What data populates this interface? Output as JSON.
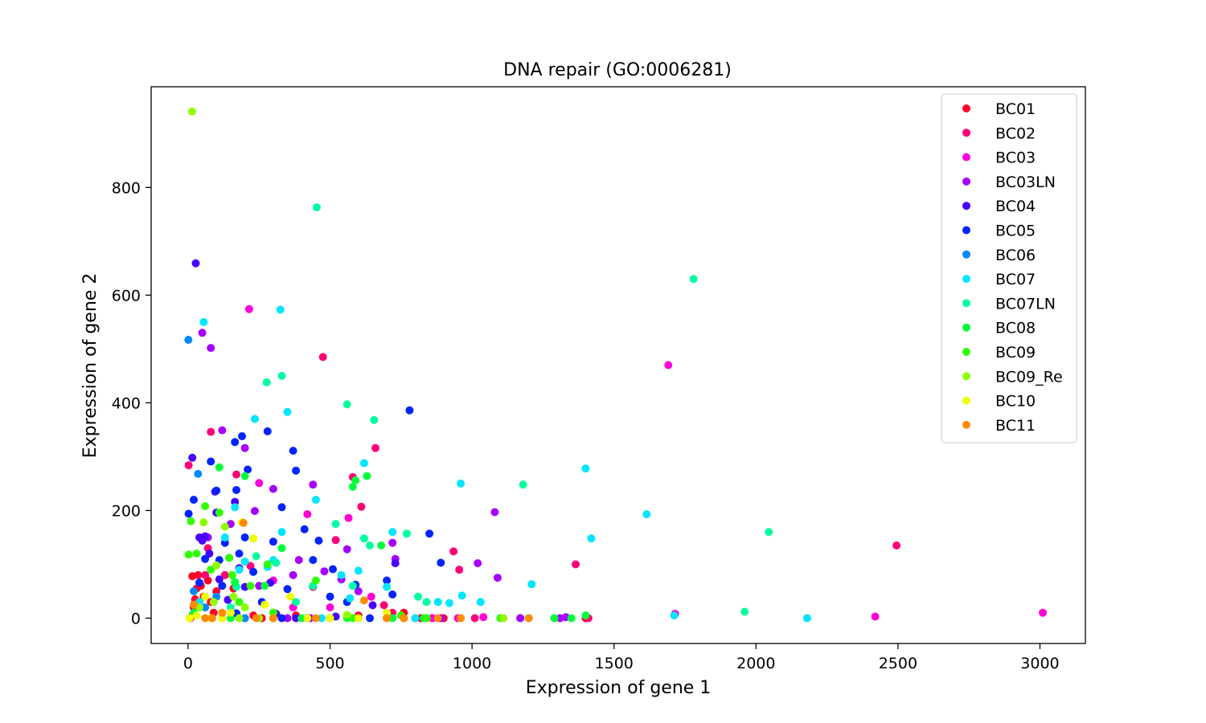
{
  "chart_data": {
    "type": "scatter",
    "title": "DNA repair (GO:0006281)",
    "xlabel": "Expression of gene 1",
    "ylabel": "Expression of gene 2",
    "xlim": [
      -130,
      3160
    ],
    "ylim": [
      -47,
      987
    ],
    "xticks": [
      0,
      500,
      1000,
      1500,
      2000,
      2500,
      3000
    ],
    "yticks": [
      0,
      200,
      400,
      600,
      800
    ],
    "grid": false,
    "legend_position": "upper right",
    "series": [
      {
        "name": "BC01",
        "color": "#ff0029",
        "points": [
          [
            8,
            0
          ],
          [
            15,
            5
          ],
          [
            20,
            20
          ],
          [
            25,
            35
          ],
          [
            30,
            55
          ],
          [
            15,
            78
          ],
          [
            35,
            80
          ],
          [
            45,
            60
          ],
          [
            55,
            40
          ],
          [
            70,
            70
          ],
          [
            80,
            30
          ],
          [
            90,
            10
          ],
          [
            100,
            50
          ],
          [
            120,
            0
          ],
          [
            130,
            80
          ],
          [
            160,
            55
          ],
          [
            200,
            0
          ],
          [
            230,
            5
          ],
          [
            260,
            0
          ],
          [
            300,
            10
          ],
          [
            380,
            5
          ],
          [
            420,
            0
          ],
          [
            500,
            0
          ],
          [
            600,
            5
          ],
          [
            700,
            0
          ],
          [
            760,
            10
          ],
          [
            820,
            0
          ],
          [
            900,
            0
          ],
          [
            1400,
            0
          ]
        ]
      },
      {
        "name": "BC02",
        "color": "#ff0078",
        "points": [
          [
            2,
            284
          ],
          [
            80,
            346
          ],
          [
            170,
            267
          ],
          [
            220,
            97
          ],
          [
            300,
            0
          ],
          [
            440,
            58
          ],
          [
            475,
            485
          ],
          [
            520,
            145
          ],
          [
            580,
            262
          ],
          [
            610,
            207
          ],
          [
            660,
            316
          ],
          [
            690,
            24
          ],
          [
            720,
            10
          ],
          [
            800,
            0
          ],
          [
            860,
            0
          ],
          [
            935,
            124
          ],
          [
            955,
            90
          ],
          [
            1010,
            0
          ],
          [
            1100,
            0
          ],
          [
            1365,
            100
          ],
          [
            1410,
            0
          ],
          [
            2495,
            135
          ],
          [
            60,
            80
          ],
          [
            130,
            80
          ],
          [
            70,
            130
          ]
        ]
      },
      {
        "name": "BC03",
        "color": "#ff00d6",
        "points": [
          [
            215,
            574
          ],
          [
            250,
            251
          ],
          [
            300,
            70
          ],
          [
            420,
            193
          ],
          [
            565,
            186
          ],
          [
            645,
            40
          ],
          [
            760,
            0
          ],
          [
            860,
            0
          ],
          [
            950,
            0
          ],
          [
            1040,
            2
          ],
          [
            1110,
            0
          ],
          [
            1170,
            0
          ],
          [
            1691,
            470
          ],
          [
            1715,
            8
          ],
          [
            2420,
            3
          ],
          [
            3010,
            10
          ],
          [
            370,
            20
          ],
          [
            500,
            20
          ]
        ]
      },
      {
        "name": "BC03LN",
        "color": "#a600ff",
        "points": [
          [
            50,
            530
          ],
          [
            80,
            502
          ],
          [
            120,
            349
          ],
          [
            200,
            316
          ],
          [
            235,
            199
          ],
          [
            300,
            240
          ],
          [
            350,
            0
          ],
          [
            370,
            80
          ],
          [
            390,
            108
          ],
          [
            440,
            248
          ],
          [
            480,
            87
          ],
          [
            540,
            72
          ],
          [
            560,
            128
          ],
          [
            600,
            50
          ],
          [
            720,
            140
          ],
          [
            730,
            110
          ],
          [
            890,
            0
          ],
          [
            1020,
            102
          ],
          [
            1080,
            197
          ],
          [
            1090,
            75
          ],
          [
            1170,
            0
          ],
          [
            1310,
            0
          ],
          [
            1330,
            2
          ],
          [
            70,
            150
          ],
          [
            150,
            175
          ],
          [
            250,
            60
          ],
          [
            430,
            0
          ]
        ]
      },
      {
        "name": "BC04",
        "color": "#4800ff",
        "points": [
          [
            27,
            659
          ],
          [
            15,
            298
          ],
          [
            40,
            150
          ],
          [
            60,
            152
          ],
          [
            75,
            120
          ],
          [
            100,
            196
          ],
          [
            110,
            72
          ],
          [
            140,
            34
          ],
          [
            165,
            216
          ],
          [
            180,
            93
          ],
          [
            200,
            58
          ],
          [
            290,
            66
          ],
          [
            310,
            8
          ],
          [
            380,
            0
          ],
          [
            420,
            0
          ],
          [
            520,
            3
          ],
          [
            600,
            0
          ],
          [
            650,
            24
          ],
          [
            730,
            102
          ],
          [
            880,
            0
          ],
          [
            50,
            144
          ],
          [
            95,
            235
          ]
        ]
      },
      {
        "name": "BC05",
        "color": "#0024ff",
        "points": [
          [
            2,
            194
          ],
          [
            20,
            220
          ],
          [
            40,
            66
          ],
          [
            60,
            110
          ],
          [
            80,
            291
          ],
          [
            100,
            237
          ],
          [
            110,
            108
          ],
          [
            130,
            140
          ],
          [
            145,
            112
          ],
          [
            165,
            327
          ],
          [
            170,
            238
          ],
          [
            180,
            120
          ],
          [
            190,
            338
          ],
          [
            210,
            276
          ],
          [
            230,
            86
          ],
          [
            280,
            347
          ],
          [
            300,
            142
          ],
          [
            330,
            206
          ],
          [
            350,
            54
          ],
          [
            370,
            311
          ],
          [
            380,
            274
          ],
          [
            410,
            165
          ],
          [
            440,
            108
          ],
          [
            460,
            144
          ],
          [
            500,
            40
          ],
          [
            510,
            91
          ],
          [
            560,
            30
          ],
          [
            590,
            62
          ],
          [
            640,
            0
          ],
          [
            700,
            70
          ],
          [
            720,
            44
          ],
          [
            780,
            386
          ],
          [
            850,
            157
          ],
          [
            890,
            103
          ],
          [
            120,
            60
          ],
          [
            200,
            150
          ],
          [
            260,
            30
          ],
          [
            330,
            0
          ],
          [
            170,
            9
          ]
        ]
      },
      {
        "name": "BC06",
        "color": "#0089ff",
        "points": [
          [
            1,
            517
          ],
          [
            35,
            268
          ],
          [
            20,
            50
          ],
          [
            60,
            20
          ],
          [
            100,
            40
          ],
          [
            150,
            10
          ],
          [
            200,
            0
          ]
        ]
      },
      {
        "name": "BC07",
        "color": "#00e6ff",
        "points": [
          [
            55,
            550
          ],
          [
            165,
            206
          ],
          [
            180,
            90
          ],
          [
            200,
            105
          ],
          [
            235,
            370
          ],
          [
            280,
            95
          ],
          [
            300,
            108
          ],
          [
            325,
            573
          ],
          [
            330,
            160
          ],
          [
            350,
            383
          ],
          [
            450,
            220
          ],
          [
            470,
            0
          ],
          [
            540,
            80
          ],
          [
            570,
            37
          ],
          [
            600,
            88
          ],
          [
            620,
            288
          ],
          [
            700,
            58
          ],
          [
            720,
            160
          ],
          [
            800,
            0
          ],
          [
            880,
            30
          ],
          [
            920,
            28
          ],
          [
            960,
            250
          ],
          [
            965,
            42
          ],
          [
            1030,
            30
          ],
          [
            1100,
            0
          ],
          [
            1210,
            63
          ],
          [
            1290,
            0
          ],
          [
            1400,
            278
          ],
          [
            1420,
            148
          ],
          [
            1615,
            193
          ],
          [
            1712,
            5
          ],
          [
            2180,
            0
          ],
          [
            130,
            150
          ],
          [
            40,
            30
          ],
          [
            300,
            0
          ]
        ]
      },
      {
        "name": "BC07LN",
        "color": "#00ff9f",
        "points": [
          [
            453,
            763
          ],
          [
            277,
            438
          ],
          [
            330,
            450
          ],
          [
            560,
            397
          ],
          [
            655,
            368
          ],
          [
            1780,
            630
          ],
          [
            1180,
            248
          ],
          [
            1960,
            12
          ],
          [
            2045,
            160
          ],
          [
            770,
            157
          ],
          [
            640,
            135
          ],
          [
            810,
            40
          ],
          [
            840,
            30
          ],
          [
            520,
            175
          ],
          [
            380,
            30
          ],
          [
            170,
            58
          ],
          [
            240,
            115
          ],
          [
            310,
            103
          ],
          [
            440,
            60
          ],
          [
            580,
            60
          ],
          [
            620,
            148
          ],
          [
            150,
            20
          ]
        ]
      },
      {
        "name": "BC08",
        "color": "#00ff3a",
        "points": [
          [
            110,
            280
          ],
          [
            165,
            67
          ],
          [
            200,
            264
          ],
          [
            270,
            60
          ],
          [
            330,
            130
          ],
          [
            560,
            0
          ],
          [
            580,
            244
          ],
          [
            590,
            256
          ],
          [
            630,
            264
          ],
          [
            680,
            135
          ],
          [
            720,
            0
          ],
          [
            830,
            0
          ],
          [
            1200,
            0
          ],
          [
            1290,
            0
          ],
          [
            1350,
            0
          ],
          [
            1400,
            5
          ],
          [
            150,
            0
          ],
          [
            400,
            0
          ],
          [
            20,
            10
          ]
        ]
      },
      {
        "name": "BC09",
        "color": "#30ff00",
        "points": [
          [
            10,
            180
          ],
          [
            2,
            118
          ],
          [
            60,
            208
          ],
          [
            110,
            196
          ],
          [
            145,
            112
          ],
          [
            155,
            80
          ],
          [
            180,
            30
          ],
          [
            280,
            100
          ],
          [
            300,
            10
          ],
          [
            450,
            70
          ],
          [
            500,
            0
          ],
          [
            580,
            0
          ],
          [
            750,
            5
          ],
          [
            840,
            0
          ],
          [
            1100,
            0
          ],
          [
            30,
            120
          ],
          [
            80,
            90
          ],
          [
            220,
            60
          ]
        ]
      },
      {
        "name": "BC09_Re",
        "color": "#8fff00",
        "points": [
          [
            14,
            941
          ],
          [
            55,
            178
          ],
          [
            100,
            98
          ],
          [
            130,
            170
          ],
          [
            160,
            40
          ],
          [
            200,
            20
          ],
          [
            250,
            0
          ],
          [
            300,
            0
          ],
          [
            560,
            6
          ],
          [
            1110,
            0
          ],
          [
            40,
            20
          ],
          [
            90,
            30
          ],
          [
            180,
            0
          ]
        ]
      },
      {
        "name": "BC10",
        "color": "#eeff00",
        "points": [
          [
            5,
            0
          ],
          [
            30,
            5
          ],
          [
            80,
            0
          ],
          [
            150,
            10
          ],
          [
            190,
            178
          ],
          [
            230,
            148
          ],
          [
            270,
            25
          ],
          [
            360,
            40
          ],
          [
            420,
            0
          ],
          [
            500,
            0
          ],
          [
            600,
            0
          ],
          [
            700,
            10
          ],
          [
            60,
            40
          ],
          [
            120,
            0
          ]
        ]
      },
      {
        "name": "BC11",
        "color": "#ff8b00",
        "points": [
          [
            20,
            25
          ],
          [
            60,
            0
          ],
          [
            120,
            10
          ],
          [
            195,
            177
          ],
          [
            300,
            0
          ],
          [
            450,
            0
          ],
          [
            620,
            33
          ],
          [
            700,
            0
          ],
          [
            760,
            0
          ],
          [
            880,
            0
          ],
          [
            960,
            0
          ],
          [
            1200,
            0
          ],
          [
            85,
            0
          ],
          [
            240,
            0
          ]
        ]
      }
    ]
  }
}
